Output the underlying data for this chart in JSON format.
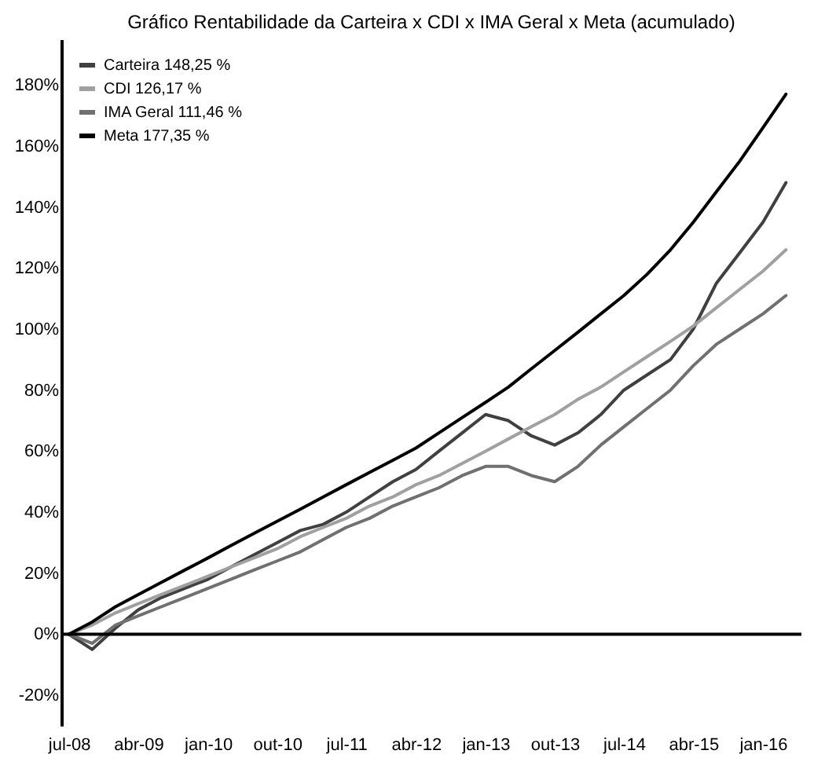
{
  "chart_data": {
    "type": "line",
    "title": "Gráfico Rentabilidade da Carteira x CDI x IMA Geral x Meta (acumulado)",
    "x": [
      "2008-07",
      "2008-10",
      "2009-01",
      "2009-04",
      "2009-07",
      "2009-10",
      "2010-01",
      "2010-04",
      "2010-07",
      "2010-10",
      "2011-01",
      "2011-04",
      "2011-07",
      "2011-10",
      "2012-01",
      "2012-04",
      "2012-07",
      "2012-10",
      "2013-01",
      "2013-04",
      "2013-07",
      "2013-10",
      "2014-01",
      "2014-04",
      "2014-07",
      "2014-10",
      "2015-01",
      "2015-04",
      "2015-07",
      "2015-10",
      "2016-01",
      "2016-04"
    ],
    "series": [
      {
        "name": "Carteira 148,25 %",
        "color": "#404040",
        "values": [
          0,
          -5,
          2,
          8,
          12,
          15,
          18,
          22,
          26,
          30,
          34,
          36,
          40,
          45,
          50,
          54,
          60,
          66,
          72,
          70,
          65,
          62,
          66,
          72,
          80,
          85,
          90,
          100,
          115,
          125,
          135,
          148
        ]
      },
      {
        "name": "CDI 126,17 %",
        "color": "#a0a0a0",
        "values": [
          0,
          3,
          7,
          10,
          13,
          16,
          19,
          22,
          25,
          28,
          32,
          35,
          38,
          42,
          45,
          49,
          52,
          56,
          60,
          64,
          68,
          72,
          77,
          81,
          86,
          91,
          96,
          101,
          107,
          113,
          119,
          126
        ]
      },
      {
        "name": "IMA Geral 111,46 %",
        "color": "#707070",
        "values": [
          0,
          -3,
          3,
          6,
          9,
          12,
          15,
          18,
          21,
          24,
          27,
          31,
          35,
          38,
          42,
          45,
          48,
          52,
          55,
          55,
          52,
          50,
          55,
          62,
          68,
          74,
          80,
          88,
          95,
          100,
          105,
          111
        ]
      },
      {
        "name": "Meta 177,35 %",
        "color": "#000000",
        "values": [
          0,
          4,
          9,
          13,
          17,
          21,
          25,
          29,
          33,
          37,
          41,
          45,
          49,
          53,
          57,
          61,
          66,
          71,
          76,
          81,
          87,
          93,
          99,
          105,
          111,
          118,
          126,
          135,
          145,
          155,
          166,
          177
        ]
      }
    ],
    "xlim": [
      "2008-06",
      "2016-06"
    ],
    "xticks": [
      {
        "value": "2008-07",
        "label": "jul-08"
      },
      {
        "value": "2009-04",
        "label": "abr-09"
      },
      {
        "value": "2010-01",
        "label": "jan-10"
      },
      {
        "value": "2010-10",
        "label": "out-10"
      },
      {
        "value": "2011-07",
        "label": "jul-11"
      },
      {
        "value": "2012-04",
        "label": "abr-12"
      },
      {
        "value": "2013-01",
        "label": "jan-13"
      },
      {
        "value": "2013-10",
        "label": "out-13"
      },
      {
        "value": "2014-07",
        "label": "jul-14"
      },
      {
        "value": "2015-04",
        "label": "abr-15"
      },
      {
        "value": "2016-01",
        "label": "jan-16"
      }
    ],
    "ylim": [
      -30,
      195
    ],
    "yticks": [
      {
        "value": -20,
        "label": "-20%"
      },
      {
        "value": 0,
        "label": "0%"
      },
      {
        "value": 20,
        "label": "20%"
      },
      {
        "value": 40,
        "label": "40%"
      },
      {
        "value": 60,
        "label": "60%"
      },
      {
        "value": 80,
        "label": "80%"
      },
      {
        "value": 100,
        "label": "100%"
      },
      {
        "value": 120,
        "label": "120%"
      },
      {
        "value": 140,
        "label": "140%"
      },
      {
        "value": 160,
        "label": "160%"
      },
      {
        "value": 180,
        "label": "180%"
      }
    ],
    "ref_lines": [
      {
        "axis": "y",
        "value": 0,
        "color": "#000000"
      }
    ],
    "grid": false,
    "legend": "top left",
    "line_style": "solid",
    "marker": "none"
  }
}
